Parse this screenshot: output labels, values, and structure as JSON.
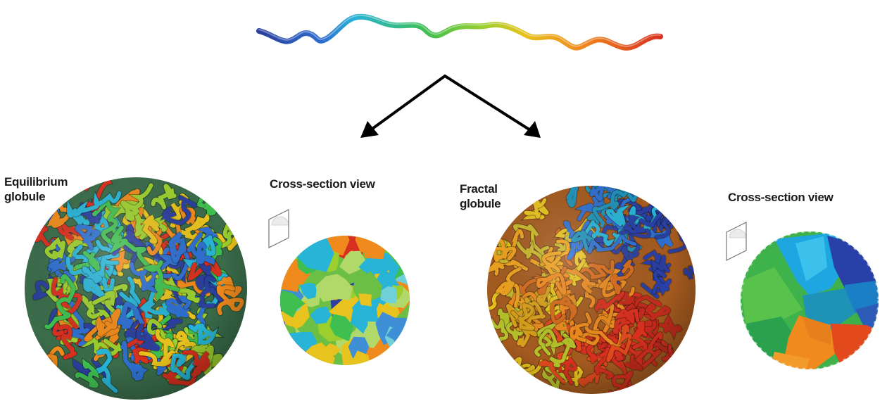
{
  "labels": {
    "equilibrium_line1": "Equilibrium",
    "equilibrium_line2": "globule",
    "cross_section_1": "Cross-section view",
    "fractal_line1": "Fractal",
    "fractal_line2": "globule",
    "cross_section_2": "Cross-section view"
  },
  "colors": {
    "chain_gradient": [
      "#2b3f9e",
      "#2e6fd0",
      "#27b4d6",
      "#3fbf4f",
      "#9ccf2e",
      "#e8c21d",
      "#f08a1c",
      "#d8301f"
    ],
    "arrow": "#000000"
  },
  "icons": [
    "chain-strand-icon",
    "cutting-plane-icon",
    "cutting-plane-icon"
  ]
}
